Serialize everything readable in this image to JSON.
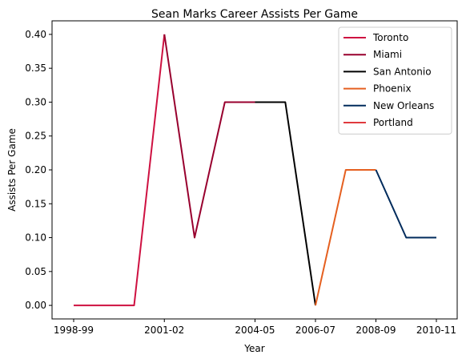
{
  "chart_data": {
    "type": "line",
    "title": "Sean Marks Career Assists Per Game",
    "xlabel": "Year",
    "ylabel": "Assists Per Game",
    "x_categories": [
      "1998-99",
      "1999-00",
      "2000-01",
      "2001-02",
      "2002-03",
      "2003-04",
      "2004-05",
      "2005-06",
      "2006-07",
      "2007-08",
      "2008-09",
      "2009-10",
      "2010-11"
    ],
    "x_tick_labels": [
      "1998-99",
      "2001-02",
      "2004-05",
      "2006-07",
      "2008-09",
      "2010-11"
    ],
    "y_ticks": [
      "0.00",
      "0.05",
      "0.10",
      "0.15",
      "0.20",
      "0.25",
      "0.30",
      "0.35",
      "0.40"
    ],
    "ylim": [
      -0.02,
      0.42
    ],
    "grid": false,
    "legend_position": "top-right",
    "series": [
      {
        "name": "Toronto",
        "color": "#ce1141",
        "points": [
          [
            "1998-99",
            0.0
          ],
          [
            "1999-00",
            0.0
          ],
          [
            "2000-01",
            0.0
          ],
          [
            "2001-02",
            0.4
          ]
        ]
      },
      {
        "name": "Miami",
        "color": "#98002e",
        "points": [
          [
            "2001-02",
            0.4
          ],
          [
            "2002-03",
            0.1
          ],
          [
            "2003-04",
            0.3
          ],
          [
            "2004-05",
            0.3
          ]
        ]
      },
      {
        "name": "San Antonio",
        "color": "#000000",
        "points": [
          [
            "2004-05",
            0.3
          ],
          [
            "2005-06",
            0.3
          ],
          [
            "2006-07",
            0.0
          ]
        ]
      },
      {
        "name": "Phoenix",
        "color": "#e56020",
        "points": [
          [
            "2006-07",
            0.0
          ],
          [
            "2007-08",
            0.2
          ],
          [
            "2008-09",
            0.2
          ]
        ]
      },
      {
        "name": "New Orleans",
        "color": "#002b5c",
        "points": [
          [
            "2008-09",
            0.2
          ],
          [
            "2009-10",
            0.1
          ],
          [
            "2010-11",
            0.1
          ]
        ]
      },
      {
        "name": "Portland",
        "color": "#e03a3e",
        "points": []
      }
    ]
  }
}
